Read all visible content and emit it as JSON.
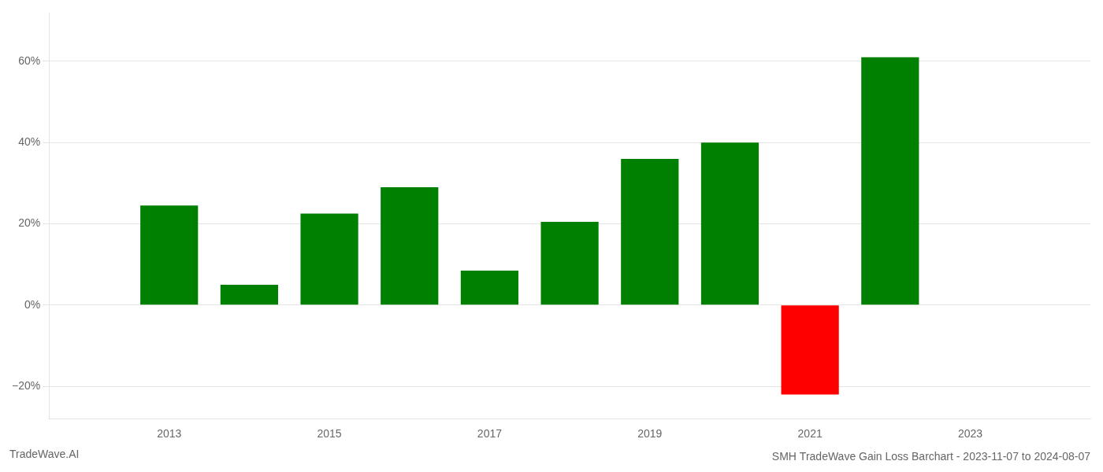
{
  "chart_data": {
    "type": "bar",
    "title": "SMH TradeWave Gain Loss Barchart - 2023-11-07 to 2024-08-07",
    "annotations": [
      "TradeWave.AI"
    ],
    "x": [
      2013,
      2014,
      2015,
      2016,
      2017,
      2018,
      2019,
      2020,
      2021,
      2022,
      2023
    ],
    "values": [
      0.245,
      0.05,
      0.225,
      0.29,
      0.085,
      0.205,
      0.36,
      0.4,
      -0.22,
      0.61,
      0.0
    ],
    "colors": [
      "#008000",
      "#008000",
      "#008000",
      "#008000",
      "#008000",
      "#008000",
      "#008000",
      "#008000",
      "#ff0000",
      "#008000",
      "#008000"
    ],
    "xlim": [
      2011.5,
      2024.5
    ],
    "xticks": [
      2013,
      2015,
      2017,
      2019,
      2021,
      2023
    ],
    "ylim": [
      -0.28,
      0.72
    ],
    "yticks": [
      {
        "value": -0.2,
        "label": "−20%"
      },
      {
        "value": 0.0,
        "label": "0%"
      },
      {
        "value": 0.2,
        "label": "20%"
      },
      {
        "value": 0.4,
        "label": "40%"
      },
      {
        "value": 0.6,
        "label": "60%"
      }
    ],
    "grid": "y"
  }
}
